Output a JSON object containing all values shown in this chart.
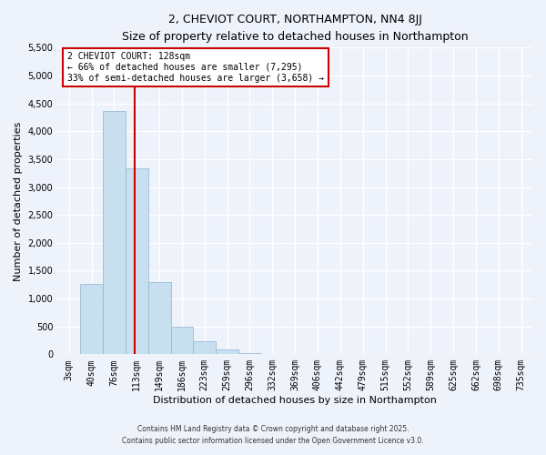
{
  "title": "2, CHEVIOT COURT, NORTHAMPTON, NN4 8JJ",
  "subtitle": "Size of property relative to detached houses in Northampton",
  "xlabel": "Distribution of detached houses by size in Northampton",
  "ylabel": "Number of detached properties",
  "bar_labels": [
    "3sqm",
    "40sqm",
    "76sqm",
    "113sqm",
    "149sqm",
    "186sqm",
    "223sqm",
    "259sqm",
    "296sqm",
    "332sqm",
    "369sqm",
    "406sqm",
    "442sqm",
    "479sqm",
    "515sqm",
    "552sqm",
    "589sqm",
    "625sqm",
    "662sqm",
    "698sqm",
    "735sqm"
  ],
  "bar_values": [
    0,
    1270,
    4370,
    3330,
    1290,
    500,
    230,
    80,
    20,
    5,
    2,
    1,
    0,
    0,
    0,
    0,
    0,
    0,
    0,
    0,
    0
  ],
  "bar_color": "#c8dff0",
  "bar_edge_color": "#8ab4d4",
  "vline_color": "#cc0000",
  "annotation_text": "2 CHEVIOT COURT: 128sqm\n← 66% of detached houses are smaller (7,295)\n33% of semi-detached houses are larger (3,658) →",
  "annotation_box_color": "#ffffff",
  "annotation_box_edge": "#cc0000",
  "ylim": [
    0,
    5500
  ],
  "yticks": [
    0,
    500,
    1000,
    1500,
    2000,
    2500,
    3000,
    3500,
    4000,
    4500,
    5000,
    5500
  ],
  "bg_color": "#eef2fb",
  "grid_color": "#ffffff",
  "footer_line1": "Contains HM Land Registry data © Crown copyright and database right 2025.",
  "footer_line2": "Contains public sector information licensed under the Open Government Licence v3.0."
}
